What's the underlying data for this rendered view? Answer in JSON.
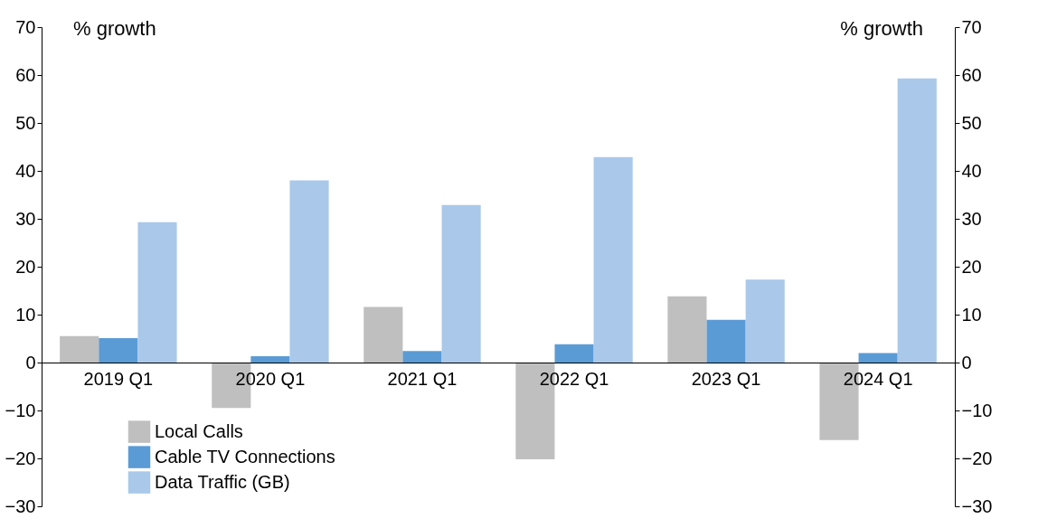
{
  "chart_data": {
    "type": "bar",
    "ylabel": "% growth",
    "y2label": "% growth",
    "categories": [
      "2019 Q1",
      "2020 Q1",
      "2021 Q1",
      "2022 Q1",
      "2023 Q1",
      "2024 Q1"
    ],
    "series": [
      {
        "name": "Local Calls",
        "color": "#bfbfbf",
        "values": [
          5.5,
          -9.5,
          11.6,
          -20.2,
          13.8,
          -16.2
        ]
      },
      {
        "name": "Cable TV Connections",
        "color": "#5b9bd5",
        "values": [
          5.1,
          1.3,
          2.4,
          3.8,
          8.9,
          2.0
        ]
      },
      {
        "name": "Data Traffic (GB)",
        "color": "#a9c8ea",
        "values": [
          29.3,
          38.0,
          32.9,
          42.9,
          17.3,
          59.3
        ]
      }
    ],
    "ylim": [
      -30,
      70
    ],
    "yticks": [
      -30,
      -20,
      -10,
      0,
      10,
      20,
      30,
      40,
      50,
      60,
      70
    ],
    "y2lim": [
      -30,
      70
    ],
    "y2ticks": [
      -30,
      -20,
      -10,
      0,
      10,
      20,
      30,
      40,
      50,
      60,
      70
    ],
    "legend": "bottom left",
    "grid": false
  }
}
